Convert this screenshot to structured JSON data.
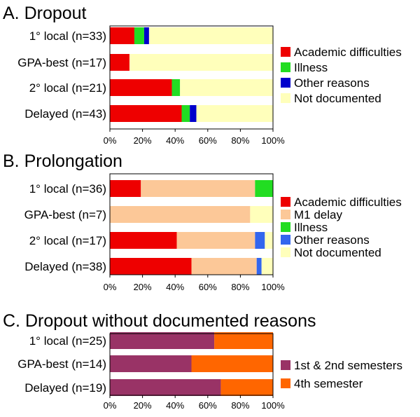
{
  "chart_data": [
    {
      "type": "bar",
      "orientation": "horizontal",
      "stacked": true,
      "title": "A. Dropout",
      "categories": [
        "1° local (n=33)",
        "GPA-best (n=17)",
        "2° local (n=21)",
        "Delayed (n=43)"
      ],
      "series": [
        {
          "name": "Academic difficulties",
          "color": "#ee0000",
          "values": [
            15,
            12,
            38,
            44
          ]
        },
        {
          "name": "Illness",
          "color": "#22dd22",
          "values": [
            6,
            0,
            5,
            5
          ]
        },
        {
          "name": "Other reasons",
          "color": "#0000cc",
          "values": [
            3,
            0,
            0,
            4
          ]
        },
        {
          "name": "Not documented",
          "color": "#ffffbb",
          "values": [
            76,
            88,
            57,
            47
          ]
        }
      ],
      "xticks": [
        "0%",
        "20%",
        "40%",
        "60%",
        "80%",
        "100%"
      ],
      "xlim": [
        0,
        100
      ],
      "grid": false,
      "legend": "right"
    },
    {
      "type": "bar",
      "orientation": "horizontal",
      "stacked": true,
      "title": "B. Prolongation",
      "categories": [
        "1° local (n=36)",
        "GPA-best (n=7)",
        "2° local (n=17)",
        "Delayed (n=38)"
      ],
      "series": [
        {
          "name": "Academic difficulties",
          "color": "#ee0000",
          "values": [
            19,
            0,
            41,
            50
          ]
        },
        {
          "name": "M1 delay",
          "color": "#fcc898",
          "values": [
            70,
            86,
            48,
            40
          ]
        },
        {
          "name": "Illness",
          "color": "#22dd22",
          "values": [
            11,
            0,
            0,
            0
          ]
        },
        {
          "name": "Other reasons",
          "color": "#3366ee",
          "values": [
            0,
            0,
            6,
            3
          ]
        },
        {
          "name": "Not documented",
          "color": "#ffffbb",
          "values": [
            0,
            14,
            5,
            7
          ]
        }
      ],
      "xticks": [
        "0%",
        "20%",
        "40%",
        "60%",
        "80%",
        "100%"
      ],
      "xlim": [
        0,
        100
      ],
      "grid": false,
      "legend": "right"
    },
    {
      "type": "bar",
      "orientation": "horizontal",
      "stacked": true,
      "title": "C. Dropout without documented reasons",
      "categories": [
        "1° local (n=25)",
        "GPA-best (n=14)",
        "Delayed (n=19)"
      ],
      "series": [
        {
          "name": "1st & 2nd semesters",
          "color": "#993366",
          "values": [
            64,
            50,
            68
          ]
        },
        {
          "name": "4th semester",
          "color": "#ff6600",
          "values": [
            36,
            50,
            32
          ]
        }
      ],
      "xticks": [
        "0%",
        "20%",
        "40%",
        "60%",
        "80%",
        "100%"
      ],
      "xlim": [
        0,
        100
      ],
      "grid": false,
      "legend": "right"
    }
  ]
}
